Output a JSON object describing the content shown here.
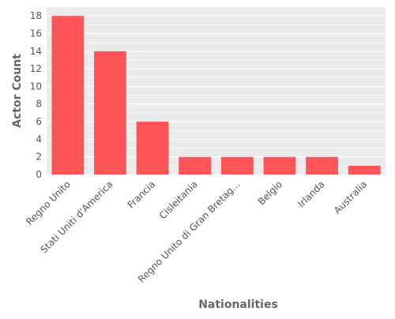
{
  "chart_data": {
    "type": "bar",
    "title": "",
    "xlabel": "Nationalities",
    "ylabel": "Actor Count",
    "categories": [
      "Regno Unito",
      "Stati Uniti d'America",
      "Francia",
      "Cisleitania",
      "Regno Unito di Gran Bretag...",
      "Belgio",
      "Irlanda",
      "Australia"
    ],
    "values": [
      18,
      14,
      6,
      2,
      2,
      2,
      2,
      1
    ],
    "ylim": [
      0,
      19
    ],
    "yticks": [
      0,
      2,
      4,
      6,
      8,
      10,
      12,
      14,
      16,
      18
    ],
    "grid": true,
    "legend": "none",
    "colors": {
      "bar": "#ff5558",
      "panel": "#ebebeb",
      "grid": "#ffffff",
      "text": "#555555"
    }
  }
}
